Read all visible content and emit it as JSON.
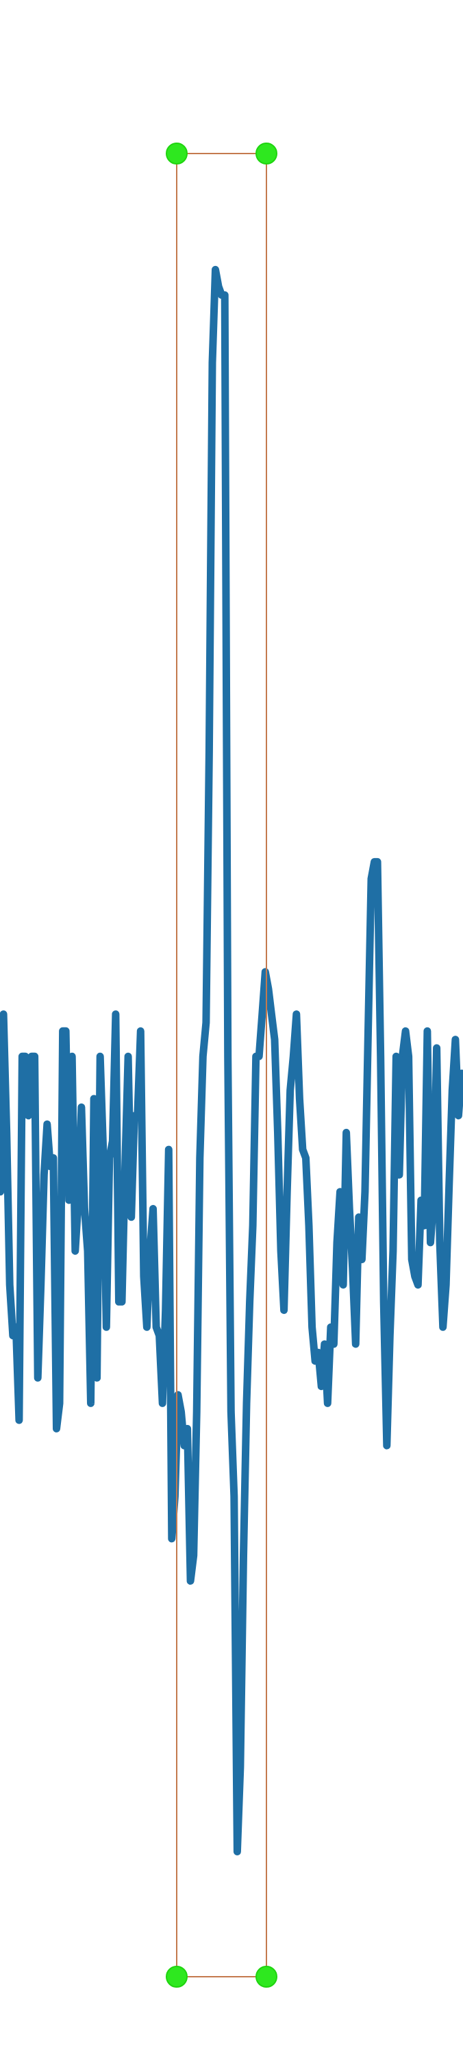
{
  "chart_data": {
    "type": "line",
    "title": "",
    "xlabel": "",
    "ylabel": "",
    "grid": false,
    "legend": "none",
    "xlim": [
      0,
      149
    ],
    "ylim": [
      -1.05,
      1.05
    ],
    "series": [
      {
        "color": "#1f6fa5",
        "x": [
          0,
          1,
          2,
          3,
          4,
          5,
          6,
          7,
          8,
          9,
          10,
          11,
          12,
          13,
          14,
          15,
          16,
          17,
          18,
          19,
          20,
          21,
          22,
          23,
          24,
          25,
          26,
          27,
          28,
          29,
          30,
          31,
          32,
          33,
          34,
          35,
          36,
          37,
          38,
          39,
          40,
          41,
          42,
          43,
          44,
          45,
          46,
          47,
          48,
          49,
          50,
          51,
          52,
          53,
          54,
          55,
          56,
          57,
          58,
          59,
          60,
          61,
          62,
          63,
          64,
          65,
          66,
          67,
          68,
          69,
          70,
          71,
          72,
          73,
          74,
          75,
          76,
          77,
          78,
          79,
          80,
          81,
          82,
          83,
          84,
          85,
          86,
          87,
          88,
          89,
          90,
          91,
          92,
          93,
          94,
          95,
          96,
          97,
          98,
          99,
          100,
          101,
          102,
          103,
          104,
          105,
          106,
          107,
          108,
          109,
          110,
          111,
          112,
          113,
          114,
          115,
          116,
          117,
          118,
          119,
          120,
          121,
          122,
          123,
          124,
          125,
          126,
          127,
          128,
          129,
          130,
          131,
          132,
          133,
          134,
          135,
          136,
          137,
          138,
          139,
          140,
          141,
          142,
          143,
          144,
          145,
          146,
          147,
          148,
          149
        ],
        "values": [
          0.02,
          -0.14,
          0.07,
          -0.07,
          -0.25,
          -0.31,
          -0.3,
          -0.41,
          0.02,
          0.02,
          -0.05,
          0.02,
          0.02,
          -0.36,
          -0.25,
          -0.12,
          -0.06,
          -0.11,
          -0.1,
          -0.42,
          -0.39,
          0.05,
          0.05,
          -0.15,
          0.02,
          -0.21,
          -0.15,
          -0.04,
          -0.16,
          -0.21,
          -0.39,
          -0.03,
          -0.36,
          0.02,
          -0.09,
          -0.3,
          -0.1,
          -0.08,
          0.07,
          -0.27,
          -0.27,
          -0.11,
          0.02,
          -0.17,
          -0.05,
          -0.05,
          0.05,
          -0.24,
          -0.3,
          -0.21,
          -0.16,
          -0.3,
          -0.31,
          -0.39,
          -0.28,
          -0.09,
          -0.55,
          -0.5,
          -0.38,
          -0.4,
          -0.44,
          -0.42,
          -0.6,
          -0.57,
          -0.4,
          -0.1,
          0.02,
          0.06,
          0.38,
          0.84,
          0.95,
          0.93,
          0.92,
          0.92,
          0.02,
          -0.4,
          -0.5,
          -0.92,
          -0.82,
          -0.57,
          -0.39,
          -0.27,
          -0.18,
          0.02,
          0.02,
          0.07,
          0.12,
          0.1,
          0.07,
          0.04,
          -0.07,
          -0.21,
          -0.28,
          -0.14,
          -0.02,
          0.02,
          0.07,
          -0.03,
          -0.09,
          -0.1,
          -0.18,
          -0.3,
          -0.34,
          -0.33,
          -0.37,
          -0.32,
          -0.39,
          -0.3,
          -0.32,
          -0.2,
          -0.14,
          -0.25,
          -0.07,
          -0.16,
          -0.23,
          -0.32,
          -0.17,
          -0.22,
          -0.14,
          0.05,
          0.23,
          0.25,
          0.25,
          0.02,
          -0.27,
          -0.44,
          -0.31,
          -0.21,
          0.02,
          -0.12,
          0.02,
          0.05,
          0.02,
          -0.22,
          -0.24,
          -0.25,
          -0.15,
          -0.18,
          0.05,
          -0.2,
          -0.15,
          0.03,
          -0.2,
          -0.3,
          -0.25,
          -0.13,
          -0.02,
          0.04,
          -0.05,
          0.0
        ]
      }
    ]
  },
  "selection": {
    "border_color": "#c47a4e",
    "handle_color": "#2ee81f"
  }
}
